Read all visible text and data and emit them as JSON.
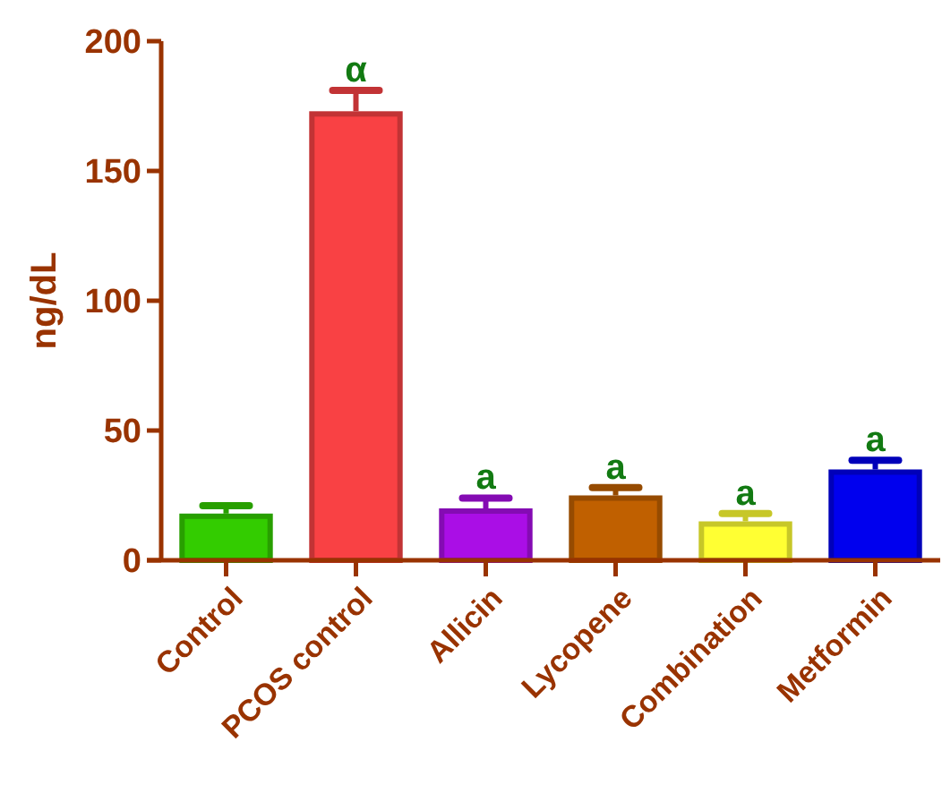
{
  "chart_data": {
    "type": "bar",
    "ylabel": "ng/dL",
    "categories": [
      "Control",
      "PCOS control",
      "Allicin",
      "Lycopene",
      "Combination",
      "Metformin"
    ],
    "values": [
      18,
      173,
      20,
      25,
      15,
      35
    ],
    "errors": [
      3,
      8,
      4,
      3,
      3,
      3.5
    ],
    "colors": [
      "#33cc00",
      "#f94144",
      "#aa0ee6",
      "#c06000",
      "#ffff33",
      "#0000ee"
    ],
    "ylim": [
      0,
      200
    ],
    "yticks": [
      0,
      50,
      100,
      150,
      200
    ],
    "grid": false,
    "annotations": [
      {
        "text": "α",
        "x": "PCOS control",
        "y": 181
      },
      {
        "text": "a",
        "x": "Allicin",
        "y": 24
      },
      {
        "text": "a",
        "x": "Lycopene",
        "y": 28
      },
      {
        "text": "a",
        "x": "Combination",
        "y": 18
      },
      {
        "text": "a",
        "x": "Metformin",
        "y": 38.5
      }
    ]
  }
}
